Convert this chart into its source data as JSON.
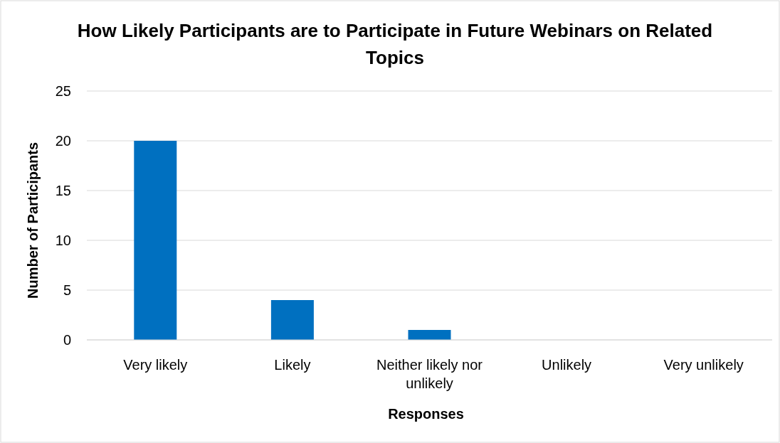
{
  "chart_data": {
    "type": "bar",
    "title": "How Likely Participants are to Participate in Future Webinars on Related Topics",
    "xlabel": "Responses",
    "ylabel": "Number of Participants",
    "categories": [
      "Very likely",
      "Likely",
      "Neither likely nor unlikely",
      "Unlikely",
      "Very unlikely"
    ],
    "values": [
      20,
      4,
      1,
      0,
      0
    ],
    "color": "#0070c0",
    "ylim": [
      0,
      25
    ],
    "yticks": [
      0,
      5,
      10,
      15,
      20,
      25
    ],
    "grid": "y"
  }
}
